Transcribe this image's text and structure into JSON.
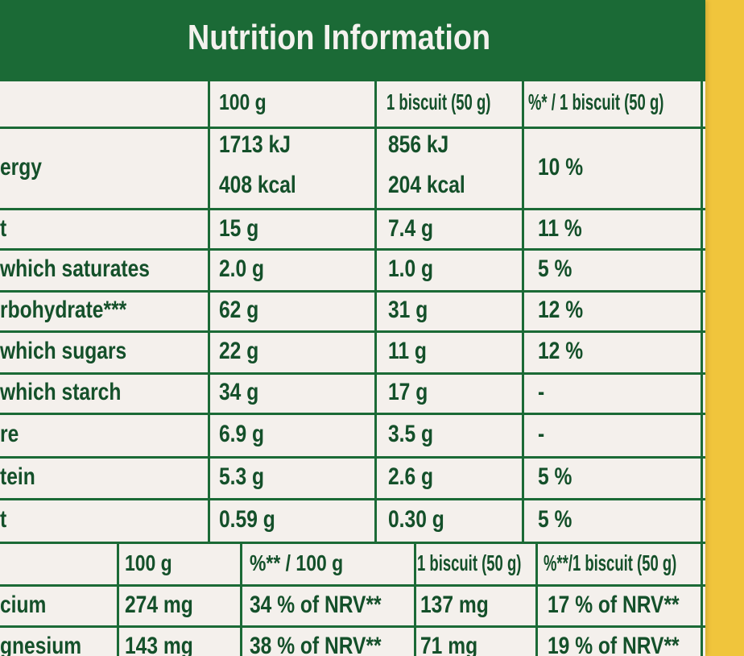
{
  "title": "Nutrition Information",
  "colors": {
    "green": "#1b6a36",
    "text": "#14502a",
    "paper": "#f4f0ec",
    "background": "#f0c53c"
  },
  "nutrition_table": {
    "headers": [
      "",
      "100 g",
      "1 biscuit (50 g)",
      "%* / 1 biscuit (50 g)"
    ],
    "energy": {
      "label": "ergy",
      "per100_kj": "1713 kJ",
      "per100_kcal": "408 kcal",
      "biscuit_kj": "856 kJ",
      "biscuit_kcal": "204 kcal",
      "pct": "10 %"
    },
    "rows": [
      {
        "label": "t",
        "per100": "15 g",
        "biscuit": "7.4 g",
        "pct": "11 %"
      },
      {
        "label": "which saturates",
        "per100": "2.0 g",
        "biscuit": "1.0 g",
        "pct": "5 %"
      },
      {
        "label": "rbohydrate***",
        "per100": "62 g",
        "biscuit": "31 g",
        "pct": "12 %"
      },
      {
        "label": "which sugars",
        "per100": "22 g",
        "biscuit": "11 g",
        "pct": "12 %"
      },
      {
        "label": "which starch",
        "per100": "34 g",
        "biscuit": "17 g",
        "pct": "-"
      },
      {
        "label": "re",
        "per100": "6.9 g",
        "biscuit": "3.5 g",
        "pct": "-"
      },
      {
        "label": "tein",
        "per100": "5.3 g",
        "biscuit": "2.6 g",
        "pct": "5 %"
      },
      {
        "label": "t",
        "per100": "0.59 g",
        "biscuit": "0.30 g",
        "pct": "5 %"
      }
    ]
  },
  "mineral_table": {
    "headers": [
      "",
      "100 g",
      "%** / 100 g",
      "1 biscuit (50 g)",
      "%**/1 biscuit (50 g)"
    ],
    "rows": [
      {
        "label": "cium",
        "per100": "274 mg",
        "pct100": "34 % of NRV**",
        "biscuit": "137 mg",
        "pct_biscuit": "17 % of NRV**"
      },
      {
        "label": "gnesium",
        "per100": "143 mg",
        "pct100": "38 % of NRV**",
        "biscuit": "71 mg",
        "pct_biscuit": "19 % of NRV**"
      }
    ]
  }
}
